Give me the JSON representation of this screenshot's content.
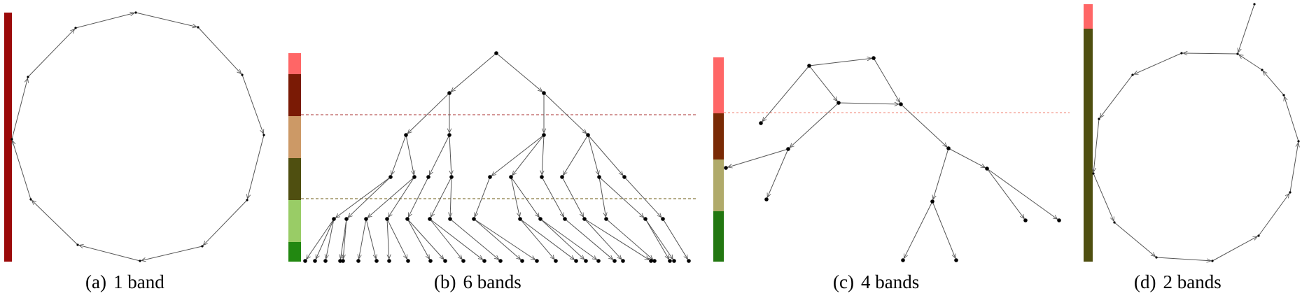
{
  "colors": {
    "edge": "#555555",
    "node": "#000000",
    "dashed_red": "#a83232",
    "dashed_olive": "#6b5a12",
    "dashed_salmon": "#f08070"
  },
  "panels": [
    {
      "id": "a",
      "label": "(a)",
      "caption": "1 band",
      "bands": [
        "#9b0a0a"
      ]
    },
    {
      "id": "b",
      "label": "(b)",
      "caption": "6 bands",
      "bands": [
        "#ff6666",
        "#7a1a05",
        "#cc9966",
        "#4f4f10",
        "#99cc66",
        "#228811"
      ]
    },
    {
      "id": "c",
      "label": "(c)",
      "caption": "4 bands",
      "bands": [
        "#ff6666",
        "#7a2a05",
        "#b0aa6a",
        "#227711"
      ]
    },
    {
      "id": "d",
      "label": "(d)",
      "caption": "2 bands",
      "bands": [
        "#ff6666",
        "#4f4f10"
      ]
    }
  ]
}
